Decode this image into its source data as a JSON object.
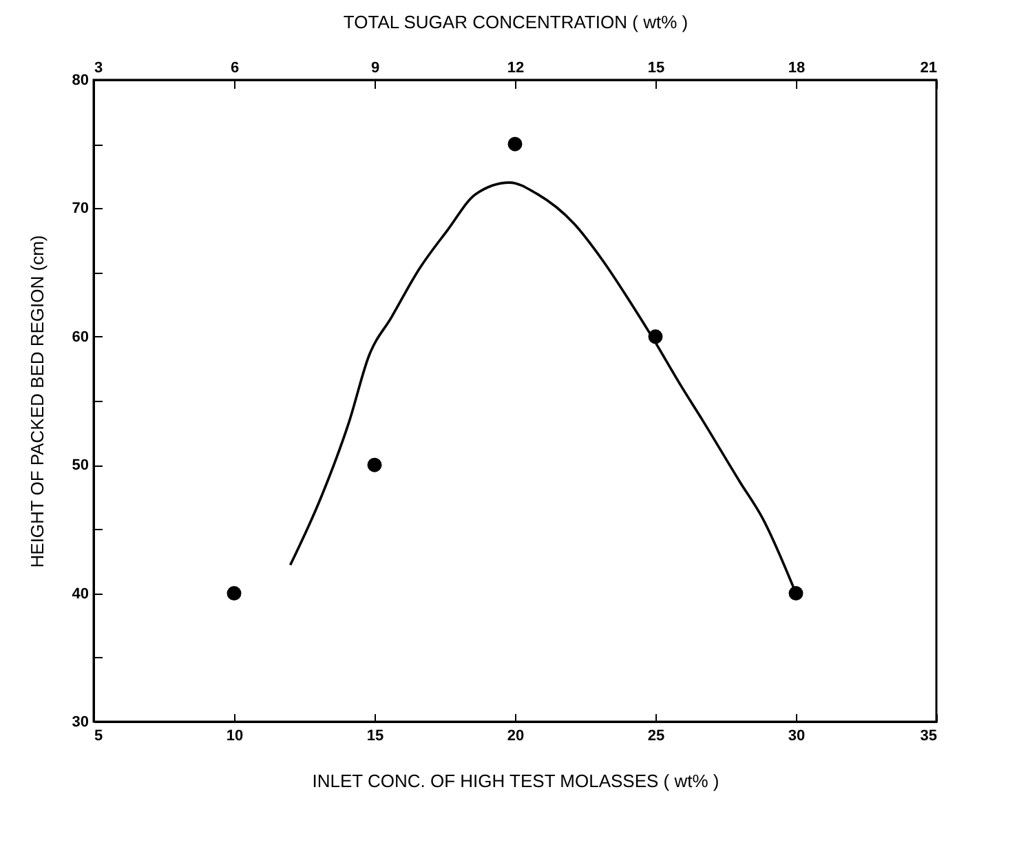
{
  "chart_data": {
    "type": "scatter",
    "xlabel": "INLET CONC. OF HIGH TEST MOLASSES ( wt% )",
    "x2label": "TOTAL SUGAR CONCENTRATION ( wt% )",
    "ylabel": "HEIGHT OF PACKED BED REGION (cm)",
    "xlim": [
      5,
      35
    ],
    "xticks": [
      5,
      10,
      15,
      20,
      25,
      30,
      35
    ],
    "x2lim": [
      3,
      21
    ],
    "x2ticks": [
      3,
      6,
      9,
      12,
      15,
      18,
      21
    ],
    "ylim": [
      30,
      80
    ],
    "yticks": [
      30,
      {
        "value": 35,
        "label": null
      },
      40,
      {
        "value": 45,
        "label": null
      },
      50,
      {
        "value": 55,
        "label": null
      },
      60,
      {
        "value": 65,
        "label": null
      },
      70,
      {
        "value": 75,
        "label": null
      },
      80
    ],
    "grid": false,
    "series": [
      {
        "type": "scatter",
        "marker": "circle",
        "color": "#000000",
        "x": [
          10,
          15,
          20,
          25,
          30
        ],
        "values": [
          40,
          50,
          75,
          60,
          40
        ]
      },
      {
        "type": "line",
        "marker": "none",
        "color": "#000000",
        "x": [
          12.0,
          13.1,
          14.1,
          14.8,
          15.6,
          16.6,
          17.6,
          18.6,
          19.8,
          20.8,
          22.1,
          23.1,
          24.1,
          24.9,
          25.9,
          26.7,
          28.0,
          28.8,
          30.0
        ],
        "values": [
          42.2,
          47.5,
          53.4,
          58.5,
          61.5,
          65.3,
          68.3,
          71.1,
          72.0,
          71.1,
          68.8,
          66.0,
          62.7,
          59.9,
          56.2,
          53.4,
          48.7,
          45.9,
          40.0
        ]
      }
    ]
  }
}
